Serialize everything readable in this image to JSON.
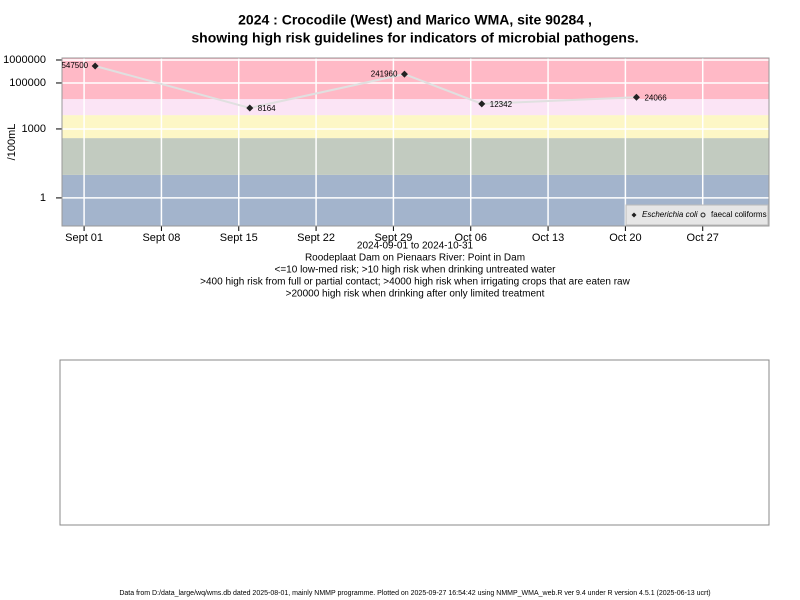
{
  "chart_data": {
    "type": "line",
    "title": "2024 : Crocodile (West) and Marico WMA, site 90284 ,",
    "title2": "showing high risk guidelines for indicators of microbial pathogens.",
    "ylabel": "/100mL",
    "log_y": true,
    "grid": true,
    "legend": "lower right",
    "subtitle": [
      "2024-09-01 to 2024-10-31",
      "Roodeplaat Dam on Pienaars River: Point in Dam",
      "<=10 low-med risk; >10 high risk when drinking untreated water",
      ">400 high risk from full or partial contact; >4000 high risk when irrigating crops that are eaten raw",
      ">20000 high risk when drinking after only limited treatment"
    ],
    "footer": "Data from D:/data_large/wq/wms.db dated 2025-08-01, mainly NMMP programme. Plotted on 2025-09-27 16:54:42 using NMMP_WMA_web.R ver 9.4 under R version 4.5.1 (2025-06-13 ucrt)",
    "thresholds": [
      10,
      400,
      4000,
      20000
    ],
    "band_colors": [
      "#a3b4cc",
      "#c2cbc0",
      "#fdf7c6",
      "#fbe4f5",
      "#ffb9c6"
    ],
    "x": [
      "2024-09-02",
      "2024-09-16",
      "2024-09-30",
      "2024-10-07",
      "2024-10-21"
    ],
    "series": [
      {
        "name": "Escherichia coli",
        "color": "#222222",
        "values": [
          547500,
          8164,
          241960,
          12342,
          24066
        ]
      },
      {
        "name": "faecal coliforms",
        "color": "#222222",
        "values": [
          null,
          null,
          null,
          null,
          null
        ]
      }
    ],
    "xlim": [
      "2024-08-30",
      "2024-11-02"
    ],
    "xticks": [
      {
        "value": "2024-09-01",
        "label": "Sept 01"
      },
      {
        "value": "2024-09-08",
        "label": "Sept 08"
      },
      {
        "value": "2024-09-15",
        "label": "Sept 15"
      },
      {
        "value": "2024-09-22",
        "label": "Sept 22"
      },
      {
        "value": "2024-09-29",
        "label": "Sept 29"
      },
      {
        "value": "2024-10-06",
        "label": "Oct 06"
      },
      {
        "value": "2024-10-13",
        "label": "Oct 13"
      },
      {
        "value": "2024-10-20",
        "label": "Oct 20"
      },
      {
        "value": "2024-10-27",
        "label": "Oct 27"
      }
    ],
    "ylim": [
      0.06,
      1220000
    ],
    "yticks": [
      1,
      1000,
      100000,
      1000000
    ]
  }
}
